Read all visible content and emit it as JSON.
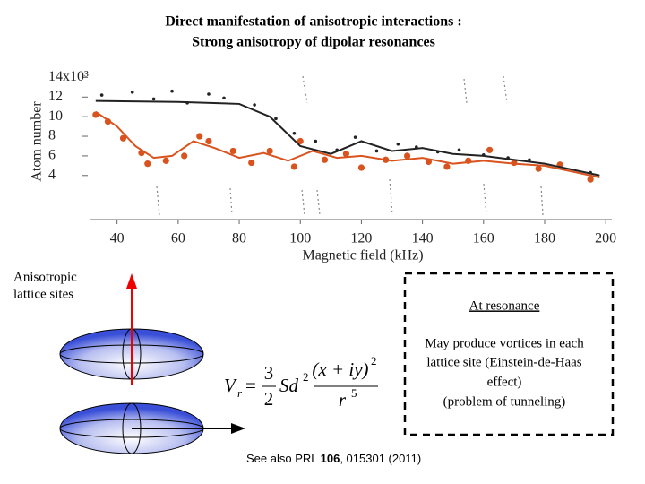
{
  "title": [
    "Direct manifestation of anisotropic interactions :",
    "Strong anisotropy of dipolar resonances"
  ],
  "chart_data": {
    "type": "scatter",
    "xlabel": "Magnetic field (kHz)",
    "ylabel": "Atom number",
    "xlim": [
      31,
      202
    ],
    "ylim": [
      -0.5,
      15.5
    ],
    "xticks": [
      40,
      60,
      80,
      100,
      120,
      140,
      160,
      180,
      200
    ],
    "yticks": [
      4,
      6,
      8,
      10,
      12,
      {
        "value": 14,
        "label": "14x10³"
      }
    ],
    "series": [
      {
        "type": "scatter",
        "color": "#222222",
        "x": [
          35,
          45,
          52,
          58,
          63,
          70,
          75,
          85,
          92,
          98,
          105,
          112,
          118,
          125,
          132,
          138,
          145,
          152,
          160,
          168,
          175,
          185,
          195
        ],
        "values": [
          12.2,
          12.5,
          11.8,
          12.6,
          11.4,
          12.3,
          11.9,
          11.2,
          9.8,
          8.3,
          7.5,
          6.6,
          7.9,
          6.5,
          7.2,
          6.9,
          6.4,
          6.6,
          6.1,
          5.8,
          5.6,
          5.0,
          4.3
        ]
      },
      {
        "type": "scatter",
        "color": "#d9531e",
        "x": [
          33,
          37,
          42,
          48,
          50,
          56,
          62,
          67,
          70,
          78,
          84,
          90,
          98,
          100,
          108,
          115,
          120,
          128,
          135,
          142,
          148,
          155,
          162,
          170,
          178,
          185,
          195
        ],
        "values": [
          10.2,
          9.5,
          7.8,
          6.3,
          5.2,
          5.5,
          6.0,
          8.0,
          7.5,
          6.5,
          5.3,
          6.5,
          4.9,
          7.5,
          5.6,
          6.2,
          4.8,
          5.6,
          6.0,
          5.4,
          4.9,
          5.5,
          6.6,
          5.3,
          4.7,
          5.1,
          3.6
        ]
      },
      {
        "type": "line",
        "color": "#222222",
        "x": [
          33,
          60,
          80,
          90,
          100,
          110,
          120,
          130,
          140,
          150,
          160,
          180,
          198
        ],
        "values": [
          11.6,
          11.5,
          11.3,
          10,
          7,
          6.2,
          7.5,
          6.5,
          6.8,
          6.2,
          6,
          5.2,
          4
        ]
      },
      {
        "type": "line",
        "color": "#d9531e",
        "x": [
          33,
          40,
          46,
          52,
          58,
          65,
          72,
          80,
          88,
          96,
          104,
          112,
          120,
          130,
          140,
          150,
          160,
          170,
          180,
          198
        ],
        "values": [
          10.5,
          9,
          7,
          5.8,
          6,
          7.5,
          6.8,
          5.8,
          6.3,
          5.5,
          6.5,
          5.8,
          6,
          5.5,
          5.8,
          5.2,
          5.5,
          5.2,
          5,
          3.8
        ]
      }
    ]
  },
  "left_label": [
    "Anisotropic",
    "lattice sites"
  ],
  "box": {
    "heading": "At resonance",
    "lines": [
      "May produce vortices in each",
      "lattice site (Einstein-de-Haas",
      "effect)",
      "(problem of tunneling)"
    ]
  },
  "equation": {
    "lhs": "V",
    "sub": "r",
    "eq": "=",
    "num1": "3",
    "den1": "2",
    "factor": "Sd",
    "pow1": "2",
    "num2": "(x + iy)",
    "pow2": "2",
    "den2": "r",
    "pow3": "5"
  },
  "reference": {
    "prefix": "See also PRL ",
    "volume": "106",
    "suffix": ", 015301 (2011)"
  }
}
